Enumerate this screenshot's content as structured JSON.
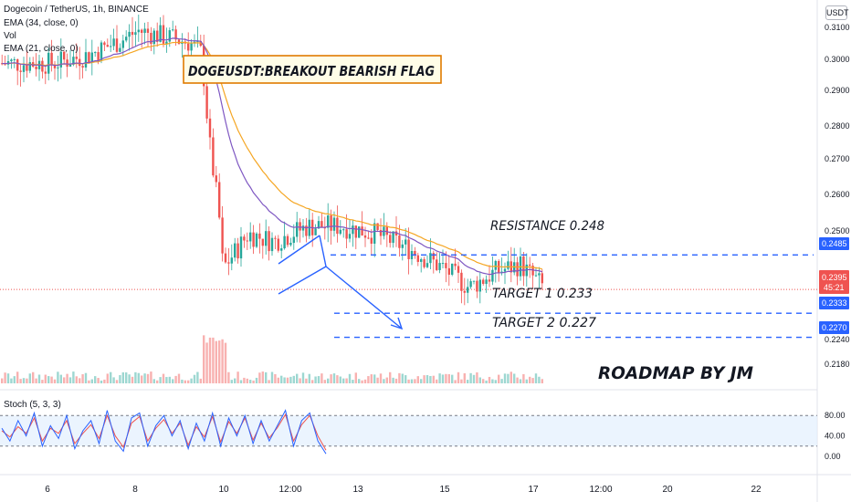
{
  "header": {
    "symbol_line": "Dogecoin / TetherUS, 1h, BINANCE",
    "ema34_label": "EMA (34, close, 0)",
    "vol_label": "Vol",
    "ema21_label": "EMA (21, close, 0)",
    "currency_badge": "USDT"
  },
  "annotations": {
    "title_box": "DOGEUSDT:BREAKOUT BEARISH FLAG",
    "resistance": "RESISTANCE 0.248",
    "target1": "TARGET 1  0.233",
    "target2": "TARGET 2  0.227",
    "roadmap": "ROADMAP BY JM"
  },
  "price_axis": {
    "ticks": [
      "0.3100",
      "0.3000",
      "0.2900",
      "0.2800",
      "0.2700",
      "0.2600",
      "0.2500",
      "0.2240",
      "0.2180"
    ],
    "tags": {
      "resistance": "0.2485",
      "current": "0.2395",
      "countdown": "45:21",
      "target1": "0.2333",
      "target2": "0.2270"
    }
  },
  "stoch": {
    "label": "Stoch (5, 3, 3)",
    "ticks": [
      "80.00",
      "40.00",
      "0.00"
    ]
  },
  "time_axis": [
    "6",
    "8",
    "10",
    "12:00",
    "13",
    "15",
    "17",
    "12:00",
    "20",
    "22"
  ],
  "colors": {
    "up": "#26a69a",
    "down": "#ef5350",
    "ema34": "#f5a623",
    "ema21": "#7e57c2",
    "level": "#2962ff",
    "stoch_k": "#2962ff",
    "stoch_d": "#ef5350",
    "box_border": "#e07b00"
  },
  "chart_data": {
    "type": "candlestick",
    "symbol": "DOGEUSDT",
    "interval": "1h",
    "price_range": [
      0.215,
      0.315
    ],
    "levels": {
      "resistance": 0.2485,
      "target1": 0.2333,
      "target2": 0.227,
      "current": 0.2395
    },
    "price_path": [
      {
        "x": 0,
        "y": 0.2985
      },
      {
        "x": 0.4,
        "y": 0.3005
      },
      {
        "x": 0.8,
        "y": 0.3045
      },
      {
        "x": 1.0,
        "y": 0.307
      },
      {
        "x": 1.2,
        "y": 0.306
      },
      {
        "x": 1.4,
        "y": 0.305
      },
      {
        "x": 1.6,
        "y": 0.304
      },
      {
        "x": 1.75,
        "y": 0.301
      },
      {
        "x": 1.8,
        "y": 0.288
      },
      {
        "x": 1.85,
        "y": 0.276
      },
      {
        "x": 1.95,
        "y": 0.26
      },
      {
        "x": 2.0,
        "y": 0.245
      },
      {
        "x": 2.3,
        "y": 0.254
      },
      {
        "x": 2.6,
        "y": 0.252
      },
      {
        "x": 3.0,
        "y": 0.256
      },
      {
        "x": 3.4,
        "y": 0.256
      },
      {
        "x": 3.8,
        "y": 0.254
      },
      {
        "x": 4.2,
        "y": 0.25
      },
      {
        "x": 4.6,
        "y": 0.245
      },
      {
        "x": 4.9,
        "y": 0.24
      },
      {
        "x": 5.2,
        "y": 0.244
      },
      {
        "x": 5.5,
        "y": 0.246
      },
      {
        "x": 5.8,
        "y": 0.2395
      }
    ],
    "stoch_range": [
      0,
      100
    ],
    "stoch_k": [
      55,
      30,
      70,
      40,
      85,
      20,
      60,
      35,
      80,
      15,
      50,
      70,
      25,
      90,
      30,
      10,
      75,
      85,
      20,
      60,
      80,
      40,
      70,
      15,
      65,
      30,
      85,
      20,
      75,
      40,
      80,
      25,
      70,
      30,
      60,
      90,
      20,
      70,
      85,
      30,
      5
    ],
    "stoch_d": [
      50,
      38,
      58,
      45,
      75,
      30,
      55,
      45,
      70,
      25,
      45,
      62,
      35,
      80,
      40,
      18,
      65,
      78,
      30,
      55,
      72,
      45,
      65,
      22,
      58,
      38,
      78,
      28,
      68,
      45,
      75,
      32,
      65,
      36,
      56,
      82,
      30,
      62,
      80,
      40,
      12
    ]
  }
}
